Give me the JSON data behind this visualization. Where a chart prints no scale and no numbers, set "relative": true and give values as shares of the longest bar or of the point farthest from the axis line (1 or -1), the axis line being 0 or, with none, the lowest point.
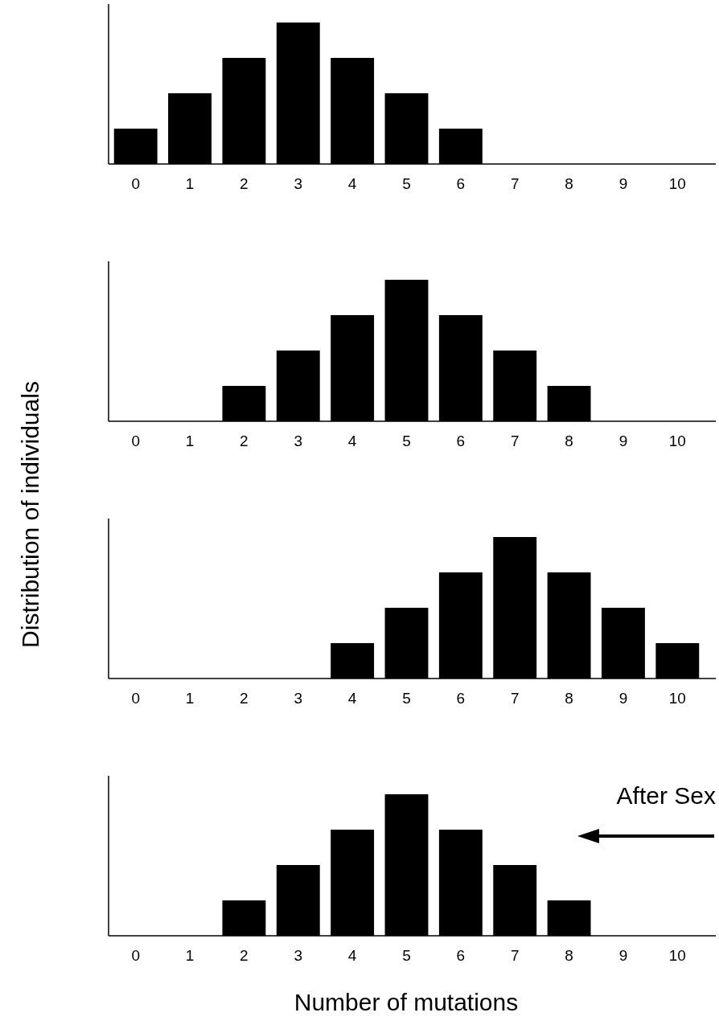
{
  "chart_data": [
    {
      "type": "bar",
      "relative": true,
      "color": "#000000",
      "categories": [
        "0",
        "1",
        "2",
        "3",
        "4",
        "5",
        "6",
        "7",
        "8",
        "9",
        "10"
      ],
      "values": [
        0.25,
        0.5,
        0.75,
        1,
        0.75,
        0.5,
        0.25,
        0,
        0,
        0,
        0
      ]
    },
    {
      "type": "bar",
      "relative": true,
      "color": "#000000",
      "categories": [
        "0",
        "1",
        "2",
        "3",
        "4",
        "5",
        "6",
        "7",
        "8",
        "9",
        "10"
      ],
      "values": [
        0,
        0,
        0.25,
        0.5,
        0.75,
        1,
        0.75,
        0.5,
        0.25,
        0,
        0
      ]
    },
    {
      "type": "bar",
      "relative": true,
      "color": "#000000",
      "ylabel": "Distribution of individuals",
      "categories": [
        "0",
        "1",
        "2",
        "3",
        "4",
        "5",
        "6",
        "7",
        "8",
        "9",
        "10"
      ],
      "values": [
        0,
        0,
        0,
        0,
        0.25,
        0.5,
        0.75,
        1,
        0.75,
        0.5,
        0.25
      ]
    },
    {
      "type": "bar",
      "relative": true,
      "color": "#000000",
      "xlabel": "Number of mutations",
      "annotations": [
        "After Sex"
      ],
      "categories": [
        "0",
        "1",
        "2",
        "3",
        "4",
        "5",
        "6",
        "7",
        "8",
        "9",
        "10"
      ],
      "values": [
        0,
        0,
        0.25,
        0.5,
        0.75,
        1,
        0.75,
        0.5,
        0.25,
        0,
        0
      ]
    }
  ]
}
